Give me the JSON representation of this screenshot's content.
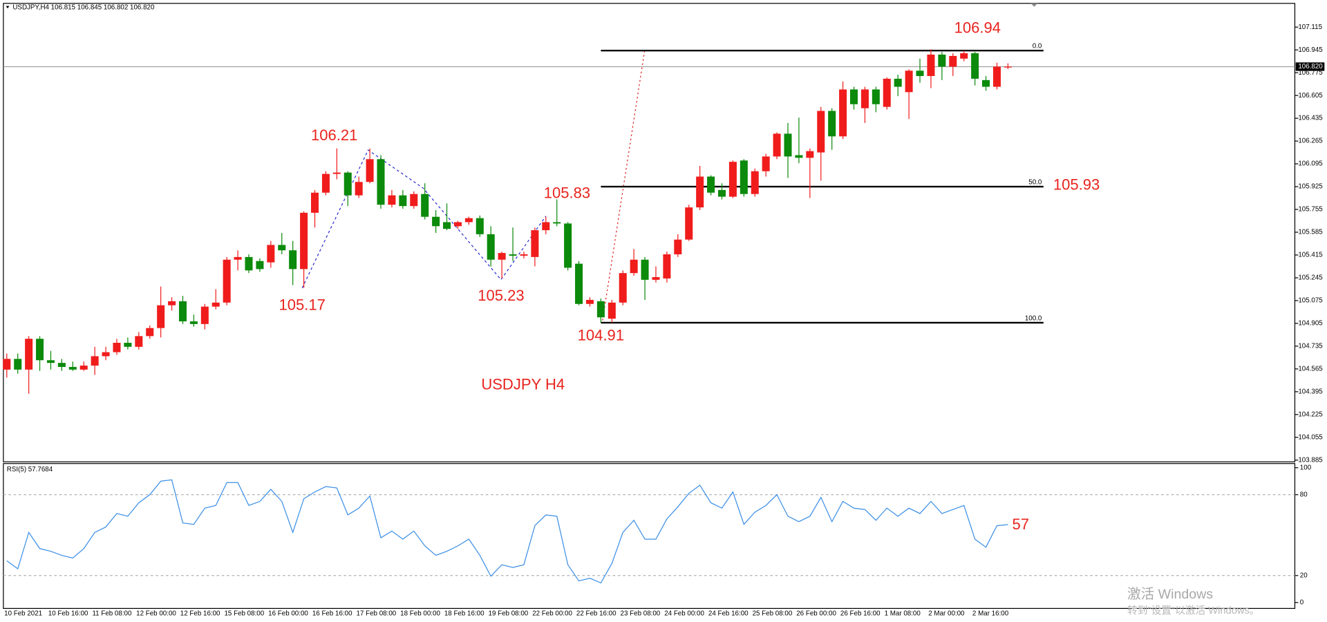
{
  "header": "USDJPY,H4  106.815 106.845 106.802 106.820",
  "watermark": [
    "激活 Windows",
    "转到\"设置\"以激活 Windows。"
  ],
  "chart_data": [
    {
      "type": "candlestick",
      "categories": [
        "10 Feb 2021",
        null,
        null,
        null,
        "10 Feb 16:00",
        null,
        null,
        null,
        "11 Feb 08:00",
        null,
        null,
        null,
        "12 Feb 00:00",
        null,
        null,
        null,
        "12 Feb 16:00",
        null,
        null,
        null,
        "15 Feb 08:00",
        null,
        null,
        null,
        "16 Feb 00:00",
        null,
        null,
        null,
        "16 Feb 16:00",
        null,
        null,
        null,
        "17 Feb 08:00",
        null,
        null,
        null,
        "18 Feb 00:00",
        null,
        null,
        null,
        "18 Feb 16:00",
        null,
        null,
        null,
        "19 Feb 08:00",
        null,
        null,
        null,
        "22 Feb 00:00",
        null,
        null,
        null,
        "22 Feb 16:00",
        null,
        null,
        null,
        "23 Feb 08:00",
        null,
        null,
        null,
        "24 Feb 00:00",
        null,
        null,
        null,
        "24 Feb 16:00",
        null,
        null,
        null,
        "25 Feb 08:00",
        null,
        null,
        null,
        "26 Feb 00:00",
        null,
        null,
        null,
        "26 Feb 16:00",
        null,
        null,
        null,
        "1 Mar 08:00",
        null,
        null,
        null,
        "2 Mar 00:00",
        null,
        null,
        null,
        "2 Mar 16:00",
        null,
        null,
        null
      ],
      "open": [
        104.56,
        104.64,
        104.56,
        104.79,
        104.63,
        104.61,
        104.58,
        104.56,
        104.59,
        104.66,
        104.69,
        104.76,
        104.73,
        104.81,
        104.87,
        105.04,
        105.07,
        104.92,
        104.9,
        105.03,
        105.06,
        105.38,
        105.4,
        105.37,
        105.36,
        105.49,
        105.45,
        105.31,
        105.73,
        105.88,
        106.02,
        106.03,
        105.86,
        105.96,
        106.13,
        105.79,
        105.86,
        105.78,
        105.87,
        105.7,
        105.66,
        105.63,
        105.66,
        105.69,
        105.57,
        105.38,
        105.42,
        105.41,
        105.4,
        105.6,
        105.66,
        105.65,
        105.35,
        105.05,
        105.07,
        104.94,
        105.06,
        105.28,
        105.38,
        105.23,
        105.24,
        105.42,
        105.53,
        105.77,
        106.0,
        105.9,
        105.85,
        106.12,
        105.87,
        106.04,
        106.15,
        106.32,
        106.16,
        106.14,
        106.18,
        106.49,
        106.3,
        106.65,
        106.51,
        106.65,
        106.52,
        106.73,
        106.63,
        106.79,
        106.75,
        106.91,
        106.82,
        106.88,
        106.92,
        106.72,
        106.67,
        106.815
      ],
      "high": [
        104.68,
        104.68,
        104.81,
        104.81,
        104.7,
        104.64,
        104.62,
        104.62,
        104.73,
        104.73,
        104.79,
        104.8,
        104.84,
        104.89,
        105.18,
        105.1,
        105.11,
        104.97,
        105.05,
        105.16,
        105.4,
        105.45,
        105.42,
        105.39,
        105.52,
        105.58,
        105.52,
        105.74,
        105.9,
        106.04,
        106.21,
        106.04,
        106.0,
        106.21,
        106.16,
        105.9,
        105.9,
        105.89,
        105.95,
        105.75,
        105.8,
        105.67,
        105.7,
        105.71,
        105.63,
        105.44,
        105.62,
        105.44,
        105.62,
        105.7,
        105.83,
        105.66,
        105.37,
        105.1,
        105.09,
        105.08,
        105.3,
        105.46,
        105.4,
        105.33,
        105.44,
        105.57,
        105.79,
        106.08,
        106.01,
        105.95,
        106.12,
        106.13,
        106.06,
        106.17,
        106.33,
        106.4,
        106.44,
        106.21,
        106.52,
        106.51,
        106.71,
        106.67,
        106.67,
        106.67,
        106.74,
        106.76,
        106.8,
        106.88,
        106.95,
        106.93,
        106.92,
        106.94,
        106.93,
        106.75,
        106.85,
        106.845
      ],
      "low": [
        104.5,
        104.53,
        104.38,
        104.55,
        104.56,
        104.55,
        104.55,
        104.55,
        104.52,
        104.63,
        104.67,
        104.71,
        104.71,
        104.79,
        104.8,
        105.0,
        104.9,
        104.88,
        104.86,
        105.01,
        105.04,
        105.3,
        105.28,
        105.29,
        105.32,
        105.42,
        105.19,
        105.17,
        105.62,
        105.86,
        105.98,
        105.78,
        105.84,
        105.95,
        105.76,
        105.77,
        105.76,
        105.76,
        105.68,
        105.58,
        105.6,
        105.61,
        105.64,
        105.55,
        105.33,
        105.24,
        105.37,
        105.39,
        105.33,
        105.57,
        105.63,
        105.3,
        105.04,
        105.03,
        104.91,
        104.91,
        105.04,
        105.26,
        105.08,
        105.21,
        105.21,
        105.4,
        105.52,
        105.75,
        105.86,
        105.83,
        105.84,
        105.85,
        105.85,
        106.0,
        106.13,
        105.99,
        106.1,
        105.84,
        105.97,
        106.2,
        106.28,
        106.5,
        106.4,
        106.48,
        106.5,
        106.6,
        106.43,
        106.7,
        106.66,
        106.72,
        106.75,
        106.86,
        106.68,
        106.64,
        106.65,
        106.802
      ],
      "close": [
        104.64,
        104.56,
        104.79,
        104.63,
        104.61,
        104.58,
        104.56,
        104.59,
        104.66,
        104.69,
        104.76,
        104.73,
        104.81,
        104.87,
        105.04,
        105.07,
        104.92,
        104.9,
        105.03,
        105.06,
        105.38,
        105.4,
        105.3,
        105.31,
        105.49,
        105.45,
        105.31,
        105.73,
        105.88,
        106.02,
        106.03,
        105.86,
        105.96,
        106.13,
        105.79,
        105.86,
        105.78,
        105.87,
        105.7,
        105.63,
        105.61,
        105.66,
        105.69,
        105.57,
        105.38,
        105.43,
        105.41,
        105.42,
        105.6,
        105.66,
        105.65,
        105.32,
        105.05,
        105.08,
        104.95,
        105.06,
        105.28,
        105.38,
        105.23,
        105.25,
        105.42,
        105.53,
        105.77,
        106.0,
        105.88,
        105.85,
        106.11,
        105.87,
        106.04,
        106.15,
        106.32,
        106.15,
        106.14,
        106.19,
        106.49,
        106.3,
        106.65,
        106.54,
        106.65,
        106.54,
        106.73,
        106.67,
        106.79,
        106.75,
        106.91,
        106.82,
        106.9,
        106.92,
        106.73,
        106.67,
        106.82,
        106.82
      ],
      "up_color": "#f01c1c",
      "down_color": "#0b8a0b",
      "ylim": [
        103.872,
        107.292
      ],
      "yticks": [
        107.115,
        106.945,
        106.775,
        106.605,
        106.435,
        106.265,
        106.095,
        105.925,
        105.755,
        105.585,
        105.415,
        105.245,
        105.075,
        104.905,
        104.735,
        104.565,
        104.395,
        104.225,
        104.055,
        103.885
      ],
      "last_price": {
        "value": 106.82,
        "label": "106.820"
      },
      "fibo": {
        "high": 106.94,
        "low": 104.91,
        "levels": [
          {
            "value": 0,
            "label": "0.0"
          },
          {
            "value": 50,
            "label": "50.0"
          },
          {
            "value": 100,
            "label": "100.0"
          }
        ]
      },
      "annotations": [
        "106.94",
        "106.21",
        "105.17",
        "105.23",
        "105.83",
        "104.91",
        "105.93",
        "USDJPY H4"
      ],
      "annotation_color": "#e8231e"
    },
    {
      "type": "line",
      "title": "RSI(5) 57.7684",
      "color": "#3a8ee6",
      "values": [
        31,
        25,
        52,
        40,
        38,
        35,
        33,
        40,
        52,
        56,
        66,
        64,
        74,
        80,
        90,
        91,
        59,
        58,
        70,
        72,
        89,
        89,
        72,
        75,
        84,
        75,
        52,
        77,
        82,
        86,
        85,
        65,
        70,
        79,
        48,
        53,
        47,
        53,
        42,
        35,
        38,
        42,
        47,
        35,
        19.5,
        28,
        26,
        28,
        57,
        65,
        64,
        28,
        16,
        18,
        14.5,
        29,
        52,
        61,
        47,
        47,
        62,
        71,
        81,
        87,
        74,
        70,
        82,
        58,
        67,
        72,
        80,
        64,
        60,
        64,
        78,
        60,
        75,
        70,
        69,
        61,
        70,
        64,
        70,
        66,
        75,
        66,
        69,
        72,
        47,
        41,
        57,
        57.7684
      ],
      "ylim": [
        -4.4,
        103.1
      ],
      "yticks": [
        0,
        20,
        80,
        100
      ],
      "grid": true,
      "annotations": [
        "57"
      ],
      "annotation_color": "#e8231e"
    }
  ]
}
